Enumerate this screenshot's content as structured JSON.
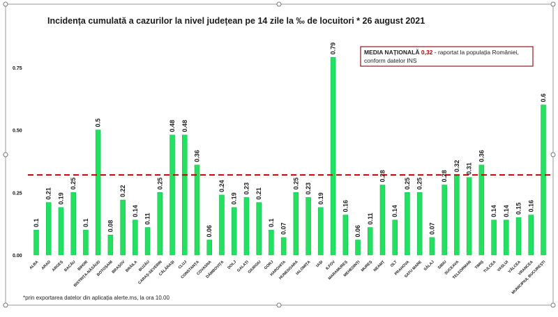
{
  "chart_data": {
    "type": "bar",
    "title": "Incidența cumulată a cazurilor la nivel județean pe 14 zile la ‰ de locuitori * 26 august 2021",
    "xlabel": "",
    "ylabel": "",
    "ylim": [
      0,
      0.85
    ],
    "yticks": [
      "0.00",
      "0.25",
      "0.50",
      "0.75"
    ],
    "grid": false,
    "bar_color": "#22e060",
    "categories": [
      "ALBA",
      "ARAD",
      "ARGEȘ",
      "BACĂU",
      "BIHOR",
      "BISTRIȚA-NĂSĂUD",
      "BOTOȘANI",
      "BRAȘOV",
      "BRĂILA",
      "BUZĂU",
      "CARAȘ-SEVERIN",
      "CĂLĂRAȘI",
      "CLUJ",
      "CONSTANȚA",
      "COVASNA",
      "DÂMBOVIȚA",
      "DOLJ",
      "GALAȚI",
      "GIURGIU",
      "GORJ",
      "HARGHITA",
      "HUNEDOARA",
      "IALOMIȚA",
      "IAȘI",
      "ILFOV",
      "MARAMUREȘ",
      "MEHEDINȚI",
      "MUREȘ",
      "NEAMȚ",
      "OLT",
      "PRAHOVA",
      "SATU MARE",
      "SĂLAJ",
      "SIBIU",
      "SUCEAVA",
      "TELEORMAN",
      "TIMIȘ",
      "TULCEA",
      "VASLUI",
      "VÂLCEA",
      "VRANCEA",
      "MUNICIPIUL BUCUREȘTI"
    ],
    "values": [
      0.1,
      0.21,
      0.19,
      0.25,
      0.1,
      0.5,
      0.08,
      0.22,
      0.14,
      0.11,
      0.25,
      0.48,
      0.48,
      0.36,
      0.06,
      0.24,
      0.19,
      0.23,
      0.21,
      0.1,
      0.07,
      0.25,
      0.23,
      0.19,
      0.79,
      0.16,
      0.06,
      0.11,
      0.28,
      0.14,
      0.25,
      0.25,
      0.07,
      0.28,
      0.32,
      0.31,
      0.36,
      0.14,
      0.14,
      0.15,
      0.16,
      0.6
    ],
    "reference_line": {
      "value": 0.32,
      "color": "#c00000",
      "style": "dashed"
    },
    "annotation": {
      "bold": "MEDIA NAȚIONALĂ",
      "value": "0,32",
      "rest": " - raportat la populația României,",
      "line2": "conform datelor INS",
      "value_color": "#c00000",
      "border_color": "#8b1a1a"
    },
    "footnote": "*prin exportarea datelor din aplicația alerte.ms, la ora 10.00"
  }
}
